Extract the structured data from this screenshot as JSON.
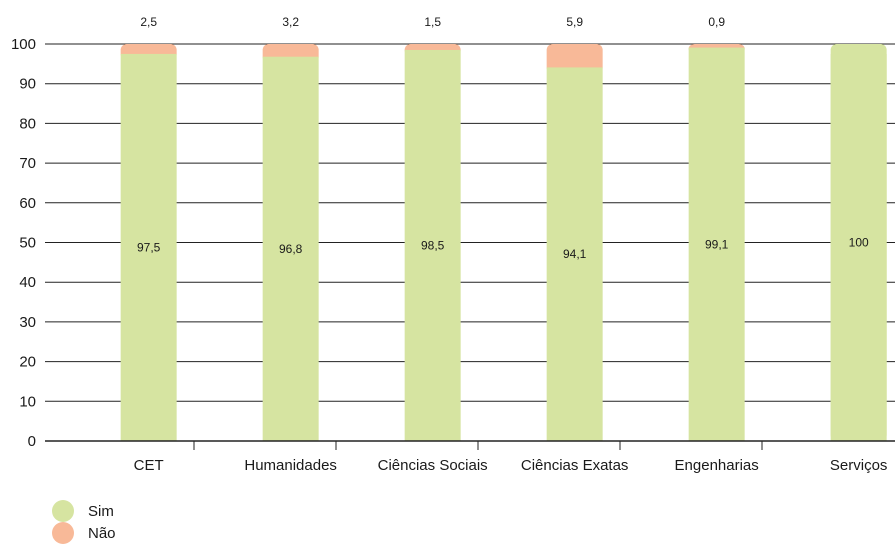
{
  "chart_data": {
    "type": "bar",
    "stacked": true,
    "categories": [
      "CET",
      "Humanidades",
      "Ciências Sociais",
      "Ciências Exatas",
      "Engenharias",
      "Serviços"
    ],
    "series": [
      {
        "name": "Sim",
        "color": "#d6e4a1",
        "values": [
          97.5,
          96.8,
          98.5,
          94.1,
          99.1,
          100
        ],
        "labels": [
          "97,5",
          "96,8",
          "98,5",
          "94,1",
          "99,1",
          "100"
        ]
      },
      {
        "name": "Não",
        "color": "#f8b998",
        "values": [
          2.5,
          3.2,
          1.5,
          5.9,
          0.9,
          0
        ],
        "labels": [
          "2,5",
          "3,2",
          "1,5",
          "5,9",
          "0,9",
          ""
        ]
      }
    ],
    "ylim": [
      0,
      100
    ],
    "yticks": [
      "0",
      "10",
      "20",
      "30",
      "40",
      "50",
      "60",
      "70",
      "80",
      "90",
      "100"
    ],
    "grid": true,
    "legend_position": "bottom-left"
  }
}
